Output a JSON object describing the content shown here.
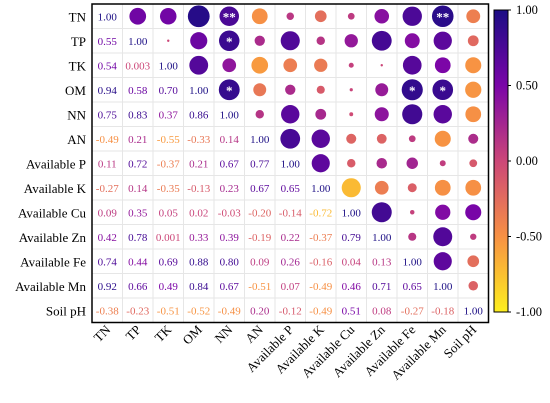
{
  "chart_data": {
    "type": "heatmap",
    "subtype": "correlation-matrix",
    "lower_triangle": "coefficient values",
    "upper_triangle": "circles sized and colored by coefficient",
    "variables": [
      "TN",
      "TP",
      "TK",
      "OM",
      "NN",
      "AN",
      "Available P",
      "Available K",
      "Available Cu",
      "Available Zn",
      "Available Fe",
      "Available Mn",
      "Soil pH"
    ],
    "matrix": [
      [
        1.0,
        0.55,
        0.54,
        0.94,
        0.75,
        -0.49,
        0.11,
        -0.27,
        0.09,
        0.42,
        0.74,
        0.92,
        -0.38
      ],
      [
        0.55,
        1.0,
        0.003,
        0.58,
        0.83,
        0.21,
        0.72,
        0.14,
        0.35,
        0.78,
        0.44,
        0.66,
        -0.23
      ],
      [
        0.54,
        0.003,
        1.0,
        0.7,
        0.37,
        -0.55,
        -0.37,
        -0.35,
        0.05,
        0.001,
        0.69,
        0.49,
        -0.51
      ],
      [
        0.94,
        0.58,
        0.7,
        1.0,
        0.86,
        -0.33,
        0.21,
        -0.13,
        0.02,
        0.33,
        0.88,
        0.84,
        -0.52
      ],
      [
        0.75,
        0.83,
        0.37,
        0.86,
        1.0,
        0.14,
        0.67,
        0.23,
        -0.03,
        0.39,
        0.8,
        0.67,
        -0.49
      ],
      [
        -0.49,
        0.21,
        -0.55,
        -0.33,
        0.14,
        1.0,
        0.77,
        0.67,
        -0.2,
        -0.19,
        0.09,
        -0.51,
        0.2
      ],
      [
        0.11,
        0.72,
        -0.37,
        0.21,
        0.67,
        0.77,
        1.0,
        0.65,
        -0.14,
        0.22,
        0.26,
        0.07,
        -0.12
      ],
      [
        -0.27,
        0.14,
        -0.35,
        -0.13,
        0.23,
        0.67,
        0.65,
        1.0,
        -0.72,
        -0.37,
        -0.16,
        -0.49,
        -0.49
      ],
      [
        0.09,
        0.35,
        0.05,
        0.02,
        -0.03,
        -0.2,
        -0.14,
        -0.72,
        1.0,
        0.79,
        0.04,
        0.46,
        0.51
      ],
      [
        0.42,
        0.78,
        0.001,
        0.33,
        0.39,
        -0.19,
        0.22,
        -0.37,
        0.79,
        1.0,
        0.13,
        0.71,
        0.08
      ],
      [
        0.74,
        0.44,
        0.69,
        0.88,
        0.8,
        0.09,
        0.26,
        -0.16,
        0.04,
        0.13,
        1.0,
        0.65,
        -0.27
      ],
      [
        0.92,
        0.66,
        0.49,
        0.84,
        0.67,
        -0.51,
        0.07,
        -0.49,
        0.46,
        0.71,
        0.65,
        1.0,
        -0.18
      ],
      [
        -0.38,
        -0.23,
        -0.51,
        -0.52,
        -0.49,
        0.2,
        -0.12,
        -0.49,
        0.51,
        0.08,
        -0.27,
        -0.18,
        1.0
      ]
    ],
    "lower_labels": [
      [
        "1.00"
      ],
      [
        "0.55",
        "1.00"
      ],
      [
        "0.54",
        "0.003",
        "1.00"
      ],
      [
        "0.94",
        "0.58",
        "0.70",
        "1.00"
      ],
      [
        "0.75",
        "0.83",
        "0.37",
        "0.86",
        "1.00"
      ],
      [
        "-0.49",
        "0.21",
        "-0.55",
        "-0.33",
        "0.14",
        "1.00"
      ],
      [
        "0.11",
        "0.72",
        "-0.37",
        "0.21",
        "0.67",
        "0.77",
        "1.00"
      ],
      [
        "-0.27",
        "0.14",
        "-0.35",
        "-0.13",
        "0.23",
        "0.67",
        "0.65",
        "1.00"
      ],
      [
        "0.09",
        "0.35",
        "0.05",
        "0.02",
        "-0.03",
        "-0.20",
        "-0.14",
        "-0.72",
        "1.00"
      ],
      [
        "0.42",
        "0.78",
        "0.001",
        "0.33",
        "0.39",
        "-0.19",
        "0.22",
        "-0.37",
        "0.79",
        "1.00"
      ],
      [
        "0.74",
        "0.44",
        "0.69",
        "0.88",
        "0.80",
        "0.09",
        "0.26",
        "-0.16",
        "0.04",
        "0.13",
        "1.00"
      ],
      [
        "0.92",
        "0.66",
        "0.49",
        "0.84",
        "0.67",
        "-0.51",
        "0.07",
        "-0.49",
        "0.46",
        "0.71",
        "0.65",
        "1.00"
      ],
      [
        "-0.38",
        "-0.23",
        "-0.51",
        "-0.52",
        "-0.49",
        "0.20",
        "-0.12",
        "-0.49",
        "0.51",
        "0.08",
        "-0.27",
        "-0.18",
        "1.00"
      ]
    ],
    "significance_marks": [
      {
        "row": 0,
        "col": 4,
        "mark": "**"
      },
      {
        "row": 0,
        "col": 11,
        "mark": "**"
      },
      {
        "row": 1,
        "col": 4,
        "mark": "*"
      },
      {
        "row": 3,
        "col": 4,
        "mark": "*"
      },
      {
        "row": 3,
        "col": 10,
        "mark": "*"
      },
      {
        "row": 3,
        "col": 11,
        "mark": "*"
      }
    ],
    "colorbar": {
      "range": [
        -1.0,
        1.0
      ],
      "ticks": [
        "1.00",
        "0.50",
        "0.00",
        "-0.50",
        "-1.00"
      ],
      "tick_values": [
        1.0,
        0.5,
        0.0,
        -0.5,
        -1.0
      ],
      "colors_high_to_low": [
        "#1b0d84",
        "#7a05a8",
        "#cc4778",
        "#f79144",
        "#fdef1f"
      ]
    },
    "grid": true,
    "legend": "right"
  }
}
